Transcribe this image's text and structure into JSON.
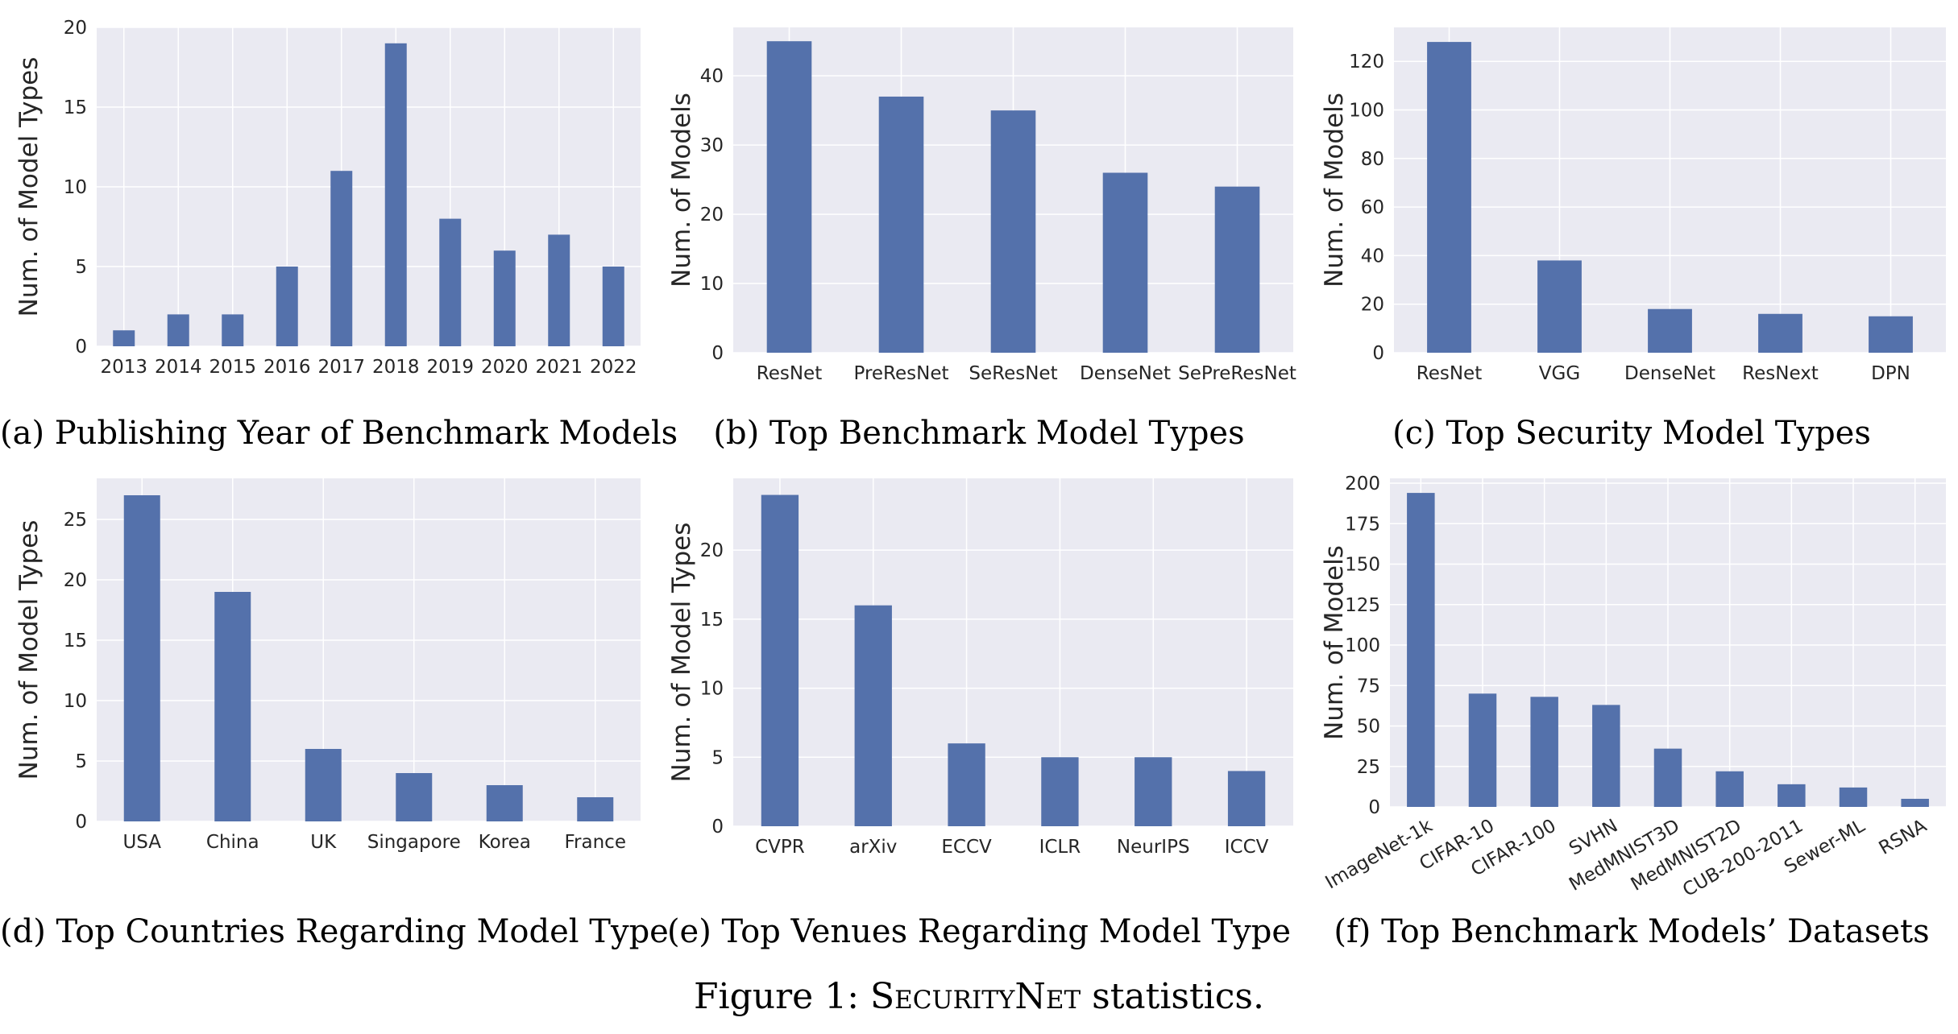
{
  "figure": {
    "caption_prefix": "Figure 1:",
    "caption_name": "SecurityNet",
    "caption_suffix": "statistics."
  },
  "style": {
    "bar_color": "#5471ab",
    "plot_bg": "#eaeaf2",
    "grid_color": "#ffffff"
  },
  "chart_data": [
    {
      "id": "a",
      "type": "bar",
      "caption": "(a) Publishing Year of Benchmark Models",
      "ylabel": "Num. of Model Types",
      "categories": [
        "2013",
        "2014",
        "2015",
        "2016",
        "2017",
        "2018",
        "2019",
        "2020",
        "2021",
        "2022"
      ],
      "values": [
        1,
        2,
        2,
        5,
        11,
        19,
        8,
        6,
        7,
        5
      ],
      "ylim": [
        0,
        20
      ],
      "yticks": [
        0,
        5,
        10,
        15,
        20
      ],
      "grid": true
    },
    {
      "id": "b",
      "type": "bar",
      "caption": "(b) Top Benchmark Model Types",
      "ylabel": "Num. of Models",
      "categories": [
        "ResNet",
        "PreResNet",
        "SeResNet",
        "DenseNet",
        "SePreResNet"
      ],
      "values": [
        45,
        37,
        35,
        26,
        24
      ],
      "ylim": [
        0,
        47
      ],
      "yticks": [
        0,
        10,
        20,
        30,
        40
      ],
      "grid": true
    },
    {
      "id": "c",
      "type": "bar",
      "caption": "(c) Top Security Model Types",
      "ylabel": "Num. of Models",
      "categories": [
        "ResNet",
        "VGG",
        "DenseNet",
        "ResNext",
        "DPN"
      ],
      "values": [
        128,
        38,
        18,
        16,
        15
      ],
      "ylim": [
        0,
        134
      ],
      "yticks": [
        0,
        20,
        40,
        60,
        80,
        100,
        120
      ],
      "grid": true
    },
    {
      "id": "d",
      "type": "bar",
      "caption": "(d) Top Countries Regarding Model Type",
      "ylabel": "Num. of Model Types",
      "categories": [
        "USA",
        "China",
        "UK",
        "Singapore",
        "Korea",
        "France"
      ],
      "values": [
        27,
        19,
        6,
        4,
        3,
        2
      ],
      "ylim": [
        0,
        28.4
      ],
      "yticks": [
        0,
        5,
        10,
        15,
        20,
        25
      ],
      "grid": true
    },
    {
      "id": "e",
      "type": "bar",
      "caption": "(e) Top Venues Regarding Model Type",
      "ylabel": "Num. of Model Types",
      "categories": [
        "CVPR",
        "arXiv",
        "ECCV",
        "ICLR",
        "NeurIPS",
        "ICCV"
      ],
      "values": [
        24,
        16,
        6,
        5,
        5,
        4
      ],
      "ylim": [
        0,
        25.2
      ],
      "yticks": [
        0,
        5,
        10,
        15,
        20
      ],
      "grid": true
    },
    {
      "id": "f",
      "type": "bar",
      "caption": "(f) Top Benchmark Models’ Datasets",
      "ylabel": "Num. of Models",
      "categories": [
        "ImageNet-1k",
        "CIFAR-10",
        "CIFAR-100",
        "SVHN",
        "MedMNIST3D",
        "MedMNIST2D",
        "CUB-200-2011",
        "Sewer-ML",
        "RSNA"
      ],
      "values": [
        194,
        70,
        68,
        63,
        36,
        22,
        14,
        12,
        5
      ],
      "ylim": [
        0,
        203
      ],
      "yticks": [
        0,
        25,
        50,
        75,
        100,
        125,
        150,
        175,
        200
      ],
      "rotated_labels": true,
      "grid": true
    }
  ]
}
